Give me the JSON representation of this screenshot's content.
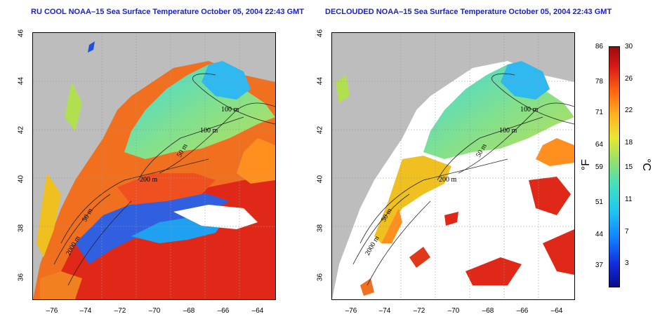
{
  "left_panel": {
    "title": "RU COOL NOAA–15 Sea Surface Temperature October 05, 2004 22:43 GMT",
    "contour_labels": [
      "100 m",
      "100 m",
      "50 m",
      "200 m",
      "50 m",
      "2000 m"
    ]
  },
  "right_panel": {
    "title": "DECLOUDED NOAA–15 Sea Surface Temperature October 05, 2004 22:43 GMT",
    "contour_labels": [
      "100 m",
      "100 m",
      "50 m",
      "200 m",
      "50 m",
      "2000 m"
    ]
  },
  "axes": {
    "x_ticks": [
      "–76",
      "–74",
      "–72",
      "–70",
      "–68",
      "–66",
      "–64"
    ],
    "y_ticks": [
      "36",
      "38",
      "40",
      "42",
      "44",
      "46"
    ]
  },
  "colorbar": {
    "fahrenheit_ticks": [
      "86",
      "78",
      "71",
      "64",
      "59",
      "51",
      "44",
      "37"
    ],
    "celsius_ticks": [
      "30",
      "26",
      "22",
      "18",
      "15",
      "11",
      "7",
      "3"
    ],
    "fahrenheit_unit": "°F",
    "celsius_unit": "°C"
  },
  "colors": {
    "title": "#1a22c8",
    "land": "#bdbdbd",
    "cloud": "#ffffff",
    "warm": "#d81818",
    "cold": "#1030e0"
  }
}
